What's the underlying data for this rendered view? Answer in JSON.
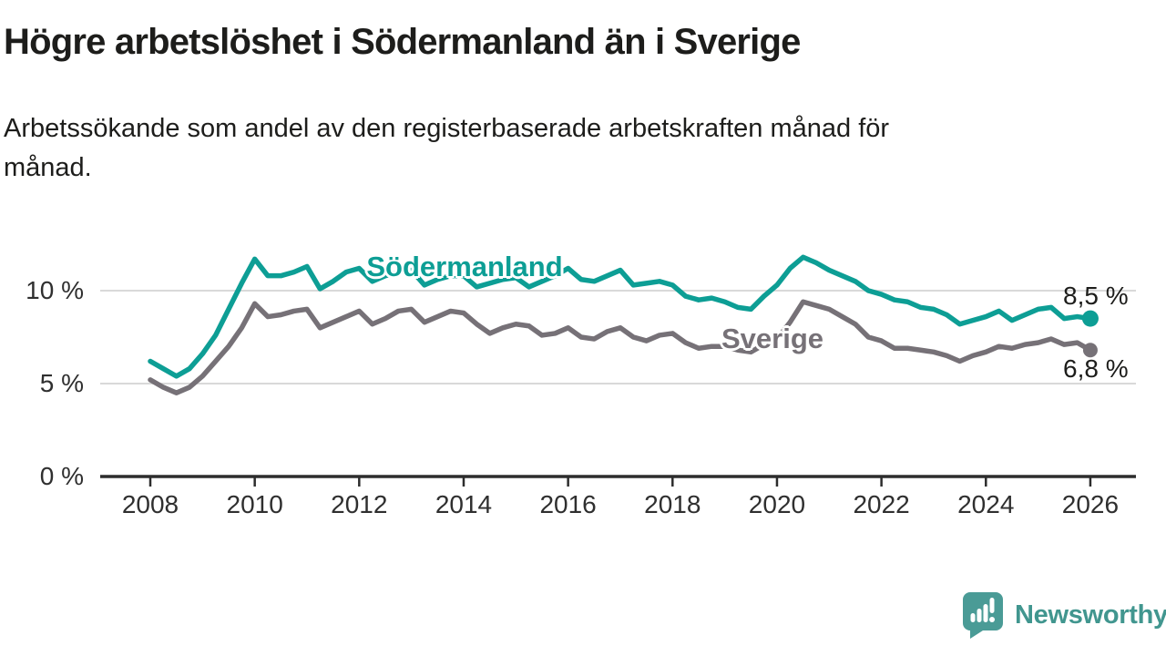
{
  "chart_data": {
    "type": "line",
    "title": "Högre arbetslöshet i Södermanland än i Sverige",
    "subtitle_line1": "Arbetssökande som andel av den registerbaserade arbetskraften månad för",
    "subtitle_line2": "månad.",
    "xlabel": "",
    "ylabel": "",
    "xlim": [
      2007.0,
      2026.8
    ],
    "ylim": [
      0,
      12.5
    ],
    "grid": "horizontal-gridlines-at-5-and-10",
    "legend": "inline-series-labels",
    "yticks": {
      "values": [
        0,
        5,
        10
      ],
      "labels": [
        "0 %",
        "5 %",
        "10 %"
      ]
    },
    "xticks": {
      "values": [
        2008,
        2010,
        2012,
        2014,
        2016,
        2018,
        2020,
        2022,
        2024,
        2026
      ],
      "labels": [
        "2008",
        "2010",
        "2012",
        "2014",
        "2016",
        "2018",
        "2020",
        "2022",
        "2024",
        "2026"
      ]
    },
    "x": [
      2008,
      2008.25,
      2008.5,
      2008.75,
      2009,
      2009.25,
      2009.5,
      2009.75,
      2010,
      2010.25,
      2010.5,
      2010.75,
      2011,
      2011.25,
      2011.5,
      2011.75,
      2012,
      2012.25,
      2012.5,
      2012.75,
      2013,
      2013.25,
      2013.5,
      2013.75,
      2014,
      2014.25,
      2014.5,
      2014.75,
      2015,
      2015.25,
      2015.5,
      2015.75,
      2016,
      2016.25,
      2016.5,
      2016.75,
      2017,
      2017.25,
      2017.5,
      2017.75,
      2018,
      2018.25,
      2018.5,
      2018.75,
      2019,
      2019.25,
      2019.5,
      2019.75,
      2020,
      2020.25,
      2020.5,
      2020.75,
      2021,
      2021.25,
      2021.5,
      2021.75,
      2022,
      2022.25,
      2022.5,
      2022.75,
      2023,
      2023.25,
      2023.5,
      2023.75,
      2024,
      2024.25,
      2024.5,
      2024.75,
      2025,
      2025.25,
      2025.5,
      2025.75,
      2026
    ],
    "series": [
      {
        "name": "Södermanland",
        "color": "#0d9e95",
        "end_label": "8,5 %",
        "end_value": 8.5,
        "values": [
          6.2,
          5.8,
          5.4,
          5.8,
          6.6,
          7.6,
          9.0,
          10.4,
          11.7,
          10.8,
          10.8,
          11.0,
          11.3,
          10.1,
          10.5,
          11.0,
          11.2,
          10.5,
          10.8,
          11.0,
          11.1,
          10.3,
          10.6,
          10.8,
          10.8,
          10.2,
          10.4,
          10.6,
          10.7,
          10.2,
          10.5,
          10.8,
          11.2,
          10.6,
          10.5,
          10.8,
          11.1,
          10.3,
          10.4,
          10.5,
          10.3,
          9.7,
          9.5,
          9.6,
          9.4,
          9.1,
          9.0,
          9.7,
          10.3,
          11.2,
          11.8,
          11.5,
          11.1,
          10.8,
          10.5,
          10.0,
          9.8,
          9.5,
          9.4,
          9.1,
          9.0,
          8.7,
          8.2,
          8.4,
          8.6,
          8.9,
          8.4,
          8.7,
          9.0,
          9.1,
          8.5,
          8.6,
          8.5
        ]
      },
      {
        "name": "Sverige",
        "color": "#767177",
        "end_label": "6,8 %",
        "end_value": 6.8,
        "values": [
          5.2,
          4.8,
          4.5,
          4.8,
          5.4,
          6.2,
          7.0,
          8.0,
          9.3,
          8.6,
          8.7,
          8.9,
          9.0,
          8.0,
          8.3,
          8.6,
          8.9,
          8.2,
          8.5,
          8.9,
          9.0,
          8.3,
          8.6,
          8.9,
          8.8,
          8.2,
          7.7,
          8.0,
          8.2,
          8.1,
          7.6,
          7.7,
          8.0,
          7.5,
          7.4,
          7.8,
          8.0,
          7.5,
          7.3,
          7.6,
          7.7,
          7.2,
          6.9,
          7.0,
          7.0,
          6.8,
          6.7,
          7.1,
          7.4,
          8.3,
          9.4,
          9.2,
          9.0,
          8.6,
          8.2,
          7.5,
          7.3,
          6.9,
          6.9,
          6.8,
          6.7,
          6.5,
          6.2,
          6.5,
          6.7,
          7.0,
          6.9,
          7.1,
          7.2,
          7.4,
          7.1,
          7.2,
          6.8
        ]
      }
    ]
  },
  "colors": {
    "sodermanland_line": "#0d9e95",
    "sverige_line": "#767177",
    "gridline": "#d9d9d9",
    "axis": "#2d2d2d",
    "title_text": "#1d1d1b",
    "tick_text": "#2f2f2f",
    "brand_teal": "#4a9b96"
  },
  "footer": {
    "brand": "Newsworthy"
  }
}
